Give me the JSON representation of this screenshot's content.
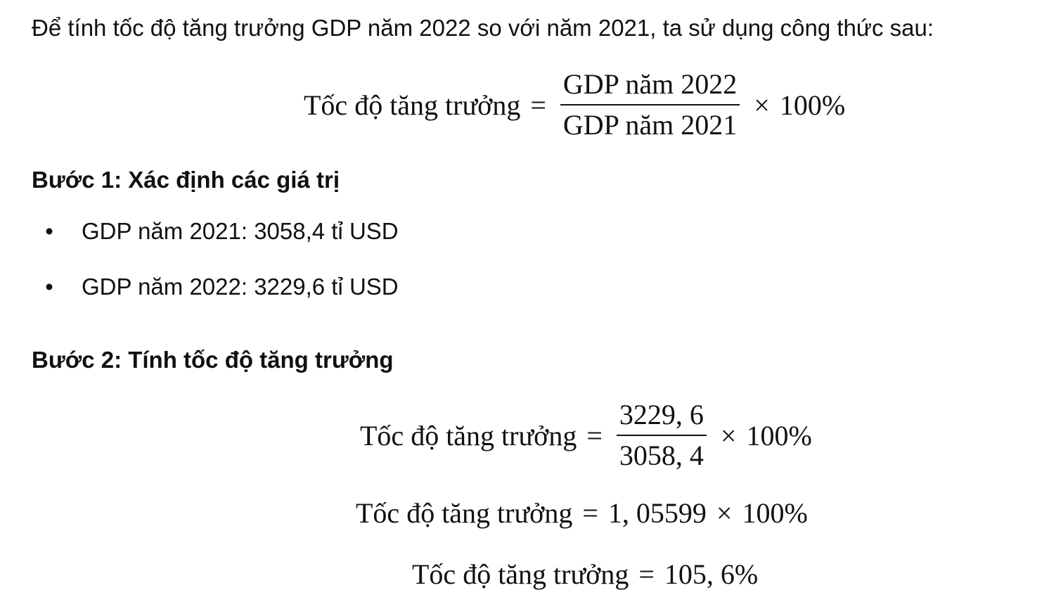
{
  "intro": "Để tính tốc độ tăng trưởng GDP năm 2022 so với năm 2021, ta sử dụng công thức sau:",
  "formula": {
    "lhs": "Tốc độ tăng trưởng",
    "equals": "=",
    "numerator": "GDP năm 2022",
    "denominator": "GDP năm 2021",
    "times": "×",
    "percent": "100%"
  },
  "step1": {
    "title": "Bước 1: Xác định các giá trị",
    "items": [
      {
        "bullet": "•",
        "text": "GDP năm 2021: 3058,4 tỉ USD"
      },
      {
        "bullet": "•",
        "text": "GDP năm 2022: 3229,6 tỉ USD"
      }
    ]
  },
  "step2": {
    "title": "Bước 2: Tính tốc độ tăng trưởng",
    "eq_a": {
      "lhs": "Tốc độ tăng trưởng",
      "equals": "=",
      "numerator": "3229, 6",
      "denominator": "3058, 4",
      "times": "×",
      "percent": "100%"
    },
    "eq_b": {
      "lhs": "Tốc độ tăng trưởng",
      "equals": "=",
      "value": "1, 05599",
      "times": "×",
      "percent": "100%"
    },
    "eq_c": {
      "lhs": "Tốc độ tăng trưởng",
      "equals": "=",
      "result": "105, 6%"
    }
  }
}
